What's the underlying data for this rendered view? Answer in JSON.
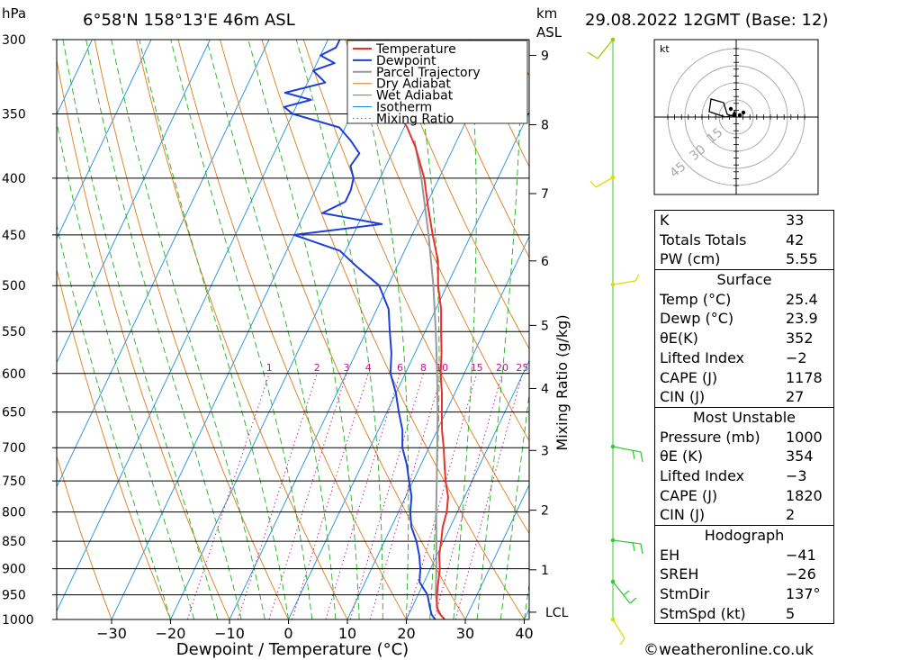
{
  "header": {
    "location": "6°58'N 158°13'E 46m ASL",
    "datetime": "29.08.2022 12GMT (Base: 12)",
    "left_unit": "hPa",
    "right_unit_km": "km",
    "right_unit_asl": "ASL"
  },
  "chart_data": {
    "type": "line",
    "subtype": "skew-T log-P diagram",
    "xlabel": "Dewpoint / Temperature (°C)",
    "ylabel_right": "Mixing Ratio (g/kg)",
    "x_ticks": [
      -30,
      -20,
      -10,
      0,
      10,
      20,
      30,
      40
    ],
    "xlim": [
      -40,
      40
    ],
    "pressure_levels": [
      300,
      350,
      400,
      450,
      500,
      550,
      600,
      650,
      700,
      750,
      800,
      850,
      900,
      950,
      1000
    ],
    "ylim_hpa": [
      1000,
      300
    ],
    "y_scale": "log",
    "km_ticks": [
      {
        "km": 1,
        "p": 902
      },
      {
        "km": 2,
        "p": 797
      },
      {
        "km": 3,
        "p": 704
      },
      {
        "km": 4,
        "p": 619
      },
      {
        "km": 5,
        "p": 543
      },
      {
        "km": 6,
        "p": 475
      },
      {
        "km": 7,
        "p": 413
      },
      {
        "km": 8,
        "p": 358
      },
      {
        "km": 9,
        "p": 310
      }
    ],
    "lcl_label": "LCL",
    "lcl_p": 985,
    "mixing_ratio_labels": [
      "1",
      "2",
      "3",
      "4",
      "6",
      "8",
      "10",
      "15",
      "20",
      "25"
    ],
    "mixing_ratio_values": [
      1,
      2,
      3,
      4,
      6,
      8,
      10,
      15,
      20,
      25
    ],
    "legend": [
      "Temperature",
      "Dewpoint",
      "Parcel Trajectory",
      "Dry Adiabat",
      "Wet Adiabat",
      "Isotherm",
      "Mixing Ratio"
    ],
    "legend_position": "top-right",
    "colors": {
      "temperature": "#e8312a",
      "dewpoint": "#1f3fd6",
      "parcel": "#999999",
      "dry_adiabat": "#e07b1a",
      "wet_adiabat": "#20b020",
      "isotherm": "#1e90e0",
      "mixing_ratio": "#c0148c"
    },
    "series": [
      {
        "name": "Temperature",
        "points": [
          [
            1000,
            26.5
          ],
          [
            990,
            25.4
          ],
          [
            975,
            24.2
          ],
          [
            950,
            23.2
          ],
          [
            925,
            22.4
          ],
          [
            900,
            21.6
          ],
          [
            875,
            20.4
          ],
          [
            850,
            19.6
          ],
          [
            825,
            18.7
          ],
          [
            800,
            18.2
          ],
          [
            775,
            17.2
          ],
          [
            750,
            15.5
          ],
          [
            725,
            14.0
          ],
          [
            700,
            12.5
          ],
          [
            675,
            10.8
          ],
          [
            650,
            9.3
          ],
          [
            625,
            7.8
          ],
          [
            600,
            6.0
          ],
          [
            575,
            4.5
          ],
          [
            550,
            2.7
          ],
          [
            525,
            0.9
          ],
          [
            500,
            -1.5
          ],
          [
            475,
            -3.5
          ],
          [
            450,
            -6.5
          ],
          [
            425,
            -9.5
          ],
          [
            400,
            -12.5
          ],
          [
            375,
            -16.5
          ],
          [
            360,
            -19.5
          ],
          [
            350,
            -22.0
          ],
          [
            325,
            -27.5
          ],
          [
            300,
            -33.0
          ]
        ]
      },
      {
        "name": "Dewpoint",
        "points": [
          [
            1000,
            24.9
          ],
          [
            990,
            23.9
          ],
          [
            975,
            23.0
          ],
          [
            950,
            21.6
          ],
          [
            925,
            19.2
          ],
          [
            900,
            18.3
          ],
          [
            875,
            17.0
          ],
          [
            850,
            15.4
          ],
          [
            825,
            13.4
          ],
          [
            800,
            12.0
          ],
          [
            775,
            11.0
          ],
          [
            750,
            9.3
          ],
          [
            725,
            7.6
          ],
          [
            700,
            5.5
          ],
          [
            675,
            4.1
          ],
          [
            650,
            2.0
          ],
          [
            625,
            0.0
          ],
          [
            600,
            -2.5
          ],
          [
            575,
            -4.0
          ],
          [
            550,
            -6.0
          ],
          [
            525,
            -8.0
          ],
          [
            500,
            -11.5
          ],
          [
            480,
            -17.0
          ],
          [
            465,
            -21.0
          ],
          [
            450,
            -30.0
          ],
          [
            440,
            -16.0
          ],
          [
            430,
            -27.0
          ],
          [
            420,
            -24.0
          ],
          [
            410,
            -24.0
          ],
          [
            400,
            -24.5
          ],
          [
            390,
            -26.0
          ],
          [
            380,
            -25.5
          ],
          [
            370,
            -28.0
          ],
          [
            360,
            -31.0
          ],
          [
            350,
            -40.0
          ],
          [
            345,
            -42.0
          ],
          [
            340,
            -38.0
          ],
          [
            335,
            -43.0
          ],
          [
            328,
            -37.0
          ],
          [
            320,
            -40.0
          ],
          [
            315,
            -37.0
          ],
          [
            310,
            -40.0
          ],
          [
            305,
            -38.0
          ],
          [
            300,
            -38.0
          ]
        ]
      },
      {
        "name": "Parcel Trajectory",
        "points": [
          [
            1000,
            26.5
          ],
          [
            985,
            24.8
          ],
          [
            950,
            23.0
          ],
          [
            900,
            21.0
          ],
          [
            850,
            18.8
          ],
          [
            800,
            16.4
          ],
          [
            750,
            14.0
          ],
          [
            700,
            11.4
          ],
          [
            650,
            8.6
          ],
          [
            600,
            5.4
          ],
          [
            550,
            1.8
          ],
          [
            500,
            -2.3
          ],
          [
            450,
            -7.2
          ],
          [
            400,
            -13.0
          ],
          [
            370,
            -17.2
          ]
        ]
      }
    ]
  },
  "hodograph": {
    "unit_label": "kt",
    "ring_labels": [
      "15",
      "30",
      "45"
    ]
  },
  "indices": {
    "general": [
      {
        "key": "K",
        "value": "33"
      },
      {
        "key": "Totals Totals",
        "value": "42"
      },
      {
        "key": "PW (cm)",
        "value": "5.55"
      }
    ],
    "surface": {
      "title": "Surface",
      "rows": [
        {
          "key": "Temp (°C)",
          "value": "25.4"
        },
        {
          "key": "Dewp (°C)",
          "value": "23.9"
        },
        {
          "key": "θE(K)",
          "value": "352"
        },
        {
          "key": "Lifted Index",
          "value": "−2"
        },
        {
          "key": "CAPE (J)",
          "value": "1178"
        },
        {
          "key": "CIN (J)",
          "value": "27"
        }
      ]
    },
    "most_unstable": {
      "title": "Most Unstable",
      "rows": [
        {
          "key": "Pressure (mb)",
          "value": "1000"
        },
        {
          "key": "θE (K)",
          "value": "354"
        },
        {
          "key": "Lifted Index",
          "value": "−3"
        },
        {
          "key": "CAPE (J)",
          "value": "1820"
        },
        {
          "key": "CIN (J)",
          "value": "2"
        }
      ]
    },
    "hodograph": {
      "title": "Hodograph",
      "rows": [
        {
          "key": "EH",
          "value": "−41"
        },
        {
          "key": "SREH",
          "value": "−26"
        },
        {
          "key": "StmDir",
          "value": "137°"
        },
        {
          "key": "StmSpd (kt)",
          "value": "5"
        }
      ]
    }
  },
  "footer": {
    "copyright": "©weatheronline.co.uk"
  }
}
